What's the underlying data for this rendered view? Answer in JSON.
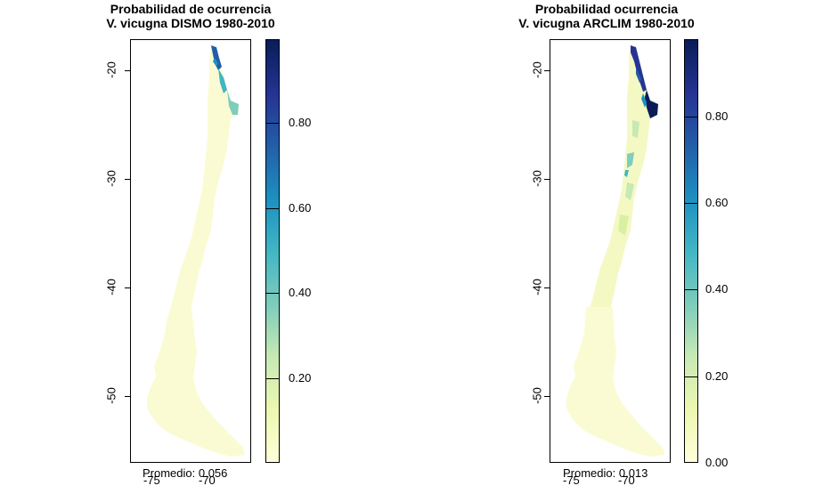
{
  "panels": [
    {
      "id": "dismo",
      "title_line1": "Probabilidad de ocurrencia",
      "title_line2": "V. vicugna DISMO 1980-2010",
      "y_ticks": [
        "-20",
        "-30",
        "-40",
        "-50"
      ],
      "x_ticks": [
        "-75",
        "-70"
      ],
      "promedio": "Promedio: 0.056",
      "colorbar_labels": [
        "0.80",
        "0.60",
        "0.40",
        "0.20"
      ],
      "colorbar_max": 1.0
    },
    {
      "id": "arclim",
      "title_line1": "Probabilidad ocurrencia",
      "title_line2": "V. vicugna ARCLIM 1980-2010",
      "y_ticks": [
        "-20",
        "-30",
        "-40",
        "-50"
      ],
      "x_ticks": [
        "-75",
        "-70"
      ],
      "promedio": "Promedio: 0.013",
      "colorbar_labels": [
        "0.80",
        "0.60",
        "0.40",
        "0.20",
        "0.00"
      ],
      "colorbar_max": 0.98
    }
  ],
  "colors": {
    "low": "#ffffd9",
    "mid_low": "#c7e9b4",
    "mid": "#41b6c4",
    "high": "#225ea8",
    "max": "#081d58"
  }
}
